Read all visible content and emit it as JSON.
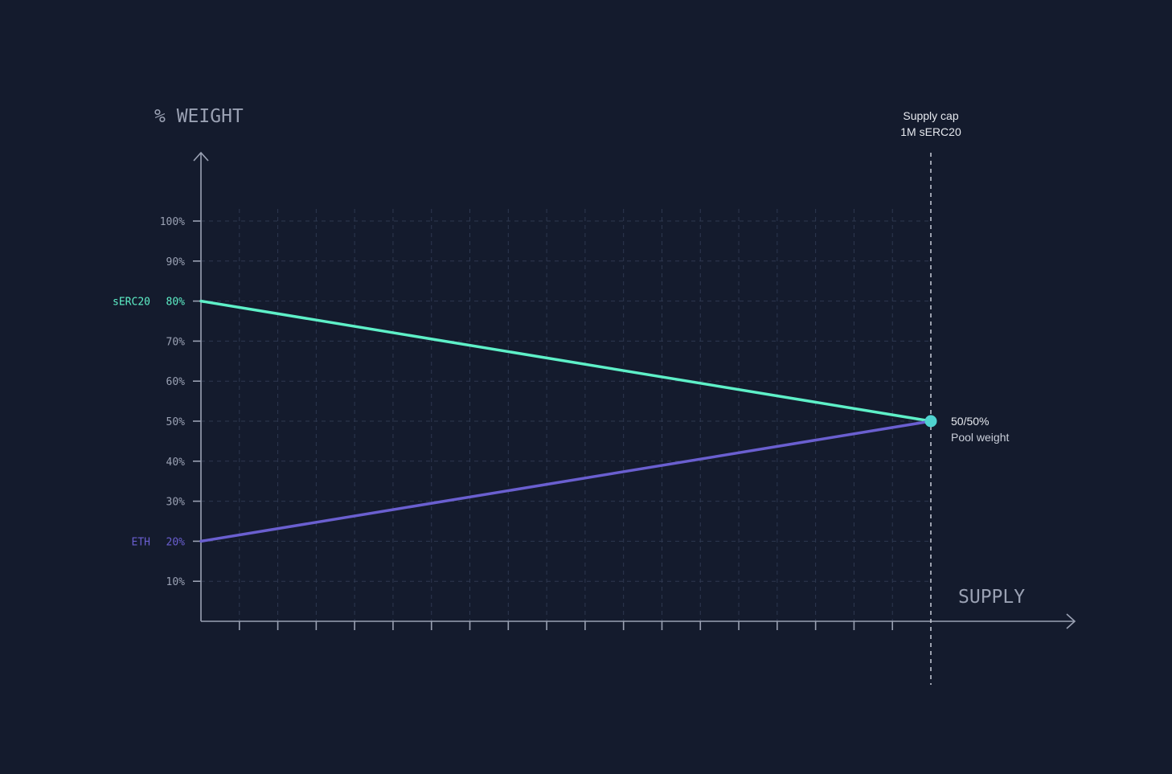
{
  "colors": {
    "background": "#141b2d",
    "axis": "#9aa1b3",
    "grid": "#2e3850",
    "label": "#9aa1b3",
    "annotation": "#e6e9ef",
    "serc20": "#5ef0c8",
    "eth": "#6a5fd0",
    "marker": "#4fd3d0"
  },
  "chart_data": {
    "type": "line",
    "title": "",
    "ylabel": "% WEIGHT",
    "xlabel": "SUPPLY",
    "ylim": [
      0,
      115
    ],
    "ytick_values": [
      10,
      20,
      30,
      40,
      50,
      60,
      70,
      80,
      90,
      100
    ],
    "ytick_labels": [
      "10%",
      "20%",
      "30%",
      "40%",
      "50%",
      "60%",
      "70%",
      "80%",
      "90%",
      "100%"
    ],
    "x_range": [
      0,
      1
    ],
    "x_tick_count": 19,
    "grid": true,
    "series": [
      {
        "name": "sERC20",
        "start_label": "80%",
        "x": [
          0,
          1
        ],
        "values": [
          80,
          50
        ]
      },
      {
        "name": "ETH",
        "start_label": "20%",
        "x": [
          0,
          1
        ],
        "values": [
          20,
          50
        ]
      }
    ],
    "annotations": {
      "supply_cap": {
        "line1": "Supply cap",
        "line2": "1M sERC20",
        "x": 1
      },
      "end_point": {
        "line1": "50/50%",
        "line2": "Pool weight",
        "x": 1,
        "y": 50
      }
    }
  }
}
